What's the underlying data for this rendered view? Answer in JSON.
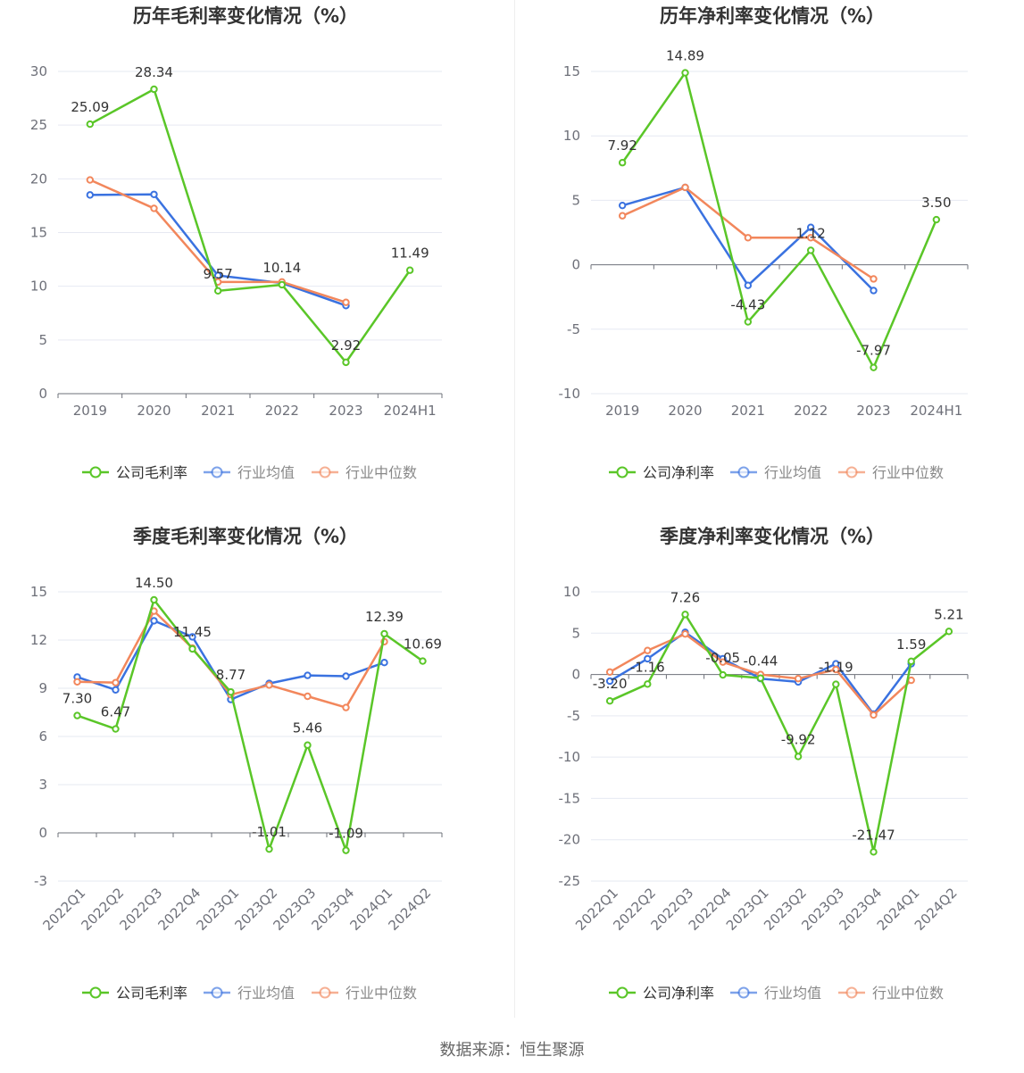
{
  "source": "数据来源：恒生聚源",
  "chart_data": [
    {
      "type": "line",
      "title": "历年毛利率变化情况（%）",
      "categories": [
        "2019",
        "2020",
        "2021",
        "2022",
        "2023",
        "2024H1"
      ],
      "ylim": [
        0,
        30
      ],
      "yticks": [
        0,
        5,
        10,
        15,
        20,
        25,
        30
      ],
      "grid": true,
      "legend_position": "bottom-center",
      "series": [
        {
          "name": "公司毛利率",
          "color": "#5ac628",
          "labeled": true,
          "values": [
            25.09,
            28.34,
            9.57,
            10.14,
            2.92,
            11.49
          ]
        },
        {
          "name": "行业均值",
          "color": "#3a72e0",
          "labeled": false,
          "values": [
            18.5,
            18.55,
            11.0,
            10.3,
            8.2,
            null
          ]
        },
        {
          "name": "行业中位数",
          "color": "#f2875c",
          "labeled": false,
          "values": [
            19.9,
            17.25,
            10.4,
            10.4,
            8.5,
            null
          ]
        }
      ]
    },
    {
      "type": "line",
      "title": "历年净利率变化情况（%）",
      "categories": [
        "2019",
        "2020",
        "2021",
        "2022",
        "2023",
        "2024H1"
      ],
      "ylim": [
        -10,
        15
      ],
      "yticks": [
        -10,
        -5,
        0,
        5,
        10,
        15
      ],
      "grid": true,
      "legend_position": "bottom-center",
      "series": [
        {
          "name": "公司净利率",
          "color": "#5ac628",
          "labeled": true,
          "values": [
            7.92,
            14.89,
            -4.43,
            1.12,
            -7.97,
            3.5
          ],
          "labels": [
            "7.92",
            "14.89",
            "-4.43",
            "1.12",
            "-7.97",
            "3.50"
          ]
        },
        {
          "name": "行业均值",
          "color": "#3a72e0",
          "labeled": false,
          "values": [
            4.6,
            6.0,
            -1.6,
            2.9,
            -2.0,
            null
          ]
        },
        {
          "name": "行业中位数",
          "color": "#f2875c",
          "labeled": false,
          "values": [
            3.8,
            6.0,
            2.1,
            2.1,
            -1.1,
            null
          ]
        }
      ]
    },
    {
      "type": "line",
      "title": "季度毛利率变化情况（%）",
      "categories": [
        "2022Q1",
        "2022Q2",
        "2022Q3",
        "2022Q4",
        "2023Q1",
        "2023Q2",
        "2023Q3",
        "2023Q4",
        "2024Q1",
        "2024Q2"
      ],
      "ylim": [
        -3,
        15
      ],
      "yticks": [
        -3,
        0,
        3,
        6,
        9,
        12,
        15
      ],
      "grid": true,
      "legend_position": "bottom-center",
      "series": [
        {
          "name": "公司毛利率",
          "color": "#5ac628",
          "labeled": true,
          "values": [
            7.3,
            6.47,
            14.5,
            11.45,
            8.77,
            -1.01,
            5.46,
            -1.09,
            12.39,
            10.69
          ],
          "labels": [
            "7.30",
            "6.47",
            "14.50",
            "11.45",
            "8.77",
            "-1.01",
            "5.46",
            "-1.09",
            "12.39",
            "10.69"
          ]
        },
        {
          "name": "行业均值",
          "color": "#3a72e0",
          "labeled": false,
          "values": [
            9.7,
            8.9,
            13.2,
            12.2,
            8.3,
            9.3,
            9.8,
            9.75,
            10.6,
            null
          ]
        },
        {
          "name": "行业中位数",
          "color": "#f2875c",
          "labeled": false,
          "values": [
            9.4,
            9.35,
            13.8,
            11.5,
            8.6,
            9.2,
            8.5,
            7.8,
            11.9,
            null
          ]
        }
      ]
    },
    {
      "type": "line",
      "title": "季度净利率变化情况（%）",
      "categories": [
        "2022Q1",
        "2022Q2",
        "2022Q3",
        "2022Q4",
        "2023Q1",
        "2023Q2",
        "2023Q3",
        "2023Q4",
        "2024Q1",
        "2024Q2"
      ],
      "ylim": [
        -25,
        10
      ],
      "yticks": [
        -25,
        -20,
        -15,
        -10,
        -5,
        0,
        5,
        10
      ],
      "grid": true,
      "legend_position": "bottom-center",
      "series": [
        {
          "name": "公司净利率",
          "color": "#5ac628",
          "labeled": true,
          "values": [
            -3.2,
            -1.16,
            7.26,
            -0.05,
            -0.44,
            -9.92,
            -1.19,
            -21.47,
            1.59,
            5.21
          ],
          "labels": [
            "-3.20",
            "-1.16",
            "7.26",
            "-0.05",
            "-0.44",
            "-9.92",
            "-1.19",
            "-21.47",
            "1.59",
            "5.21"
          ]
        },
        {
          "name": "行业均值",
          "color": "#3a72e0",
          "labeled": false,
          "values": [
            -0.8,
            1.9,
            5.1,
            1.9,
            -0.5,
            -0.9,
            1.3,
            -4.8,
            1.3,
            null
          ]
        },
        {
          "name": "行业中位数",
          "color": "#f2875c",
          "labeled": false,
          "values": [
            0.3,
            2.9,
            4.9,
            1.5,
            0.0,
            -0.5,
            0.6,
            -4.9,
            -0.7,
            null
          ]
        }
      ]
    }
  ]
}
